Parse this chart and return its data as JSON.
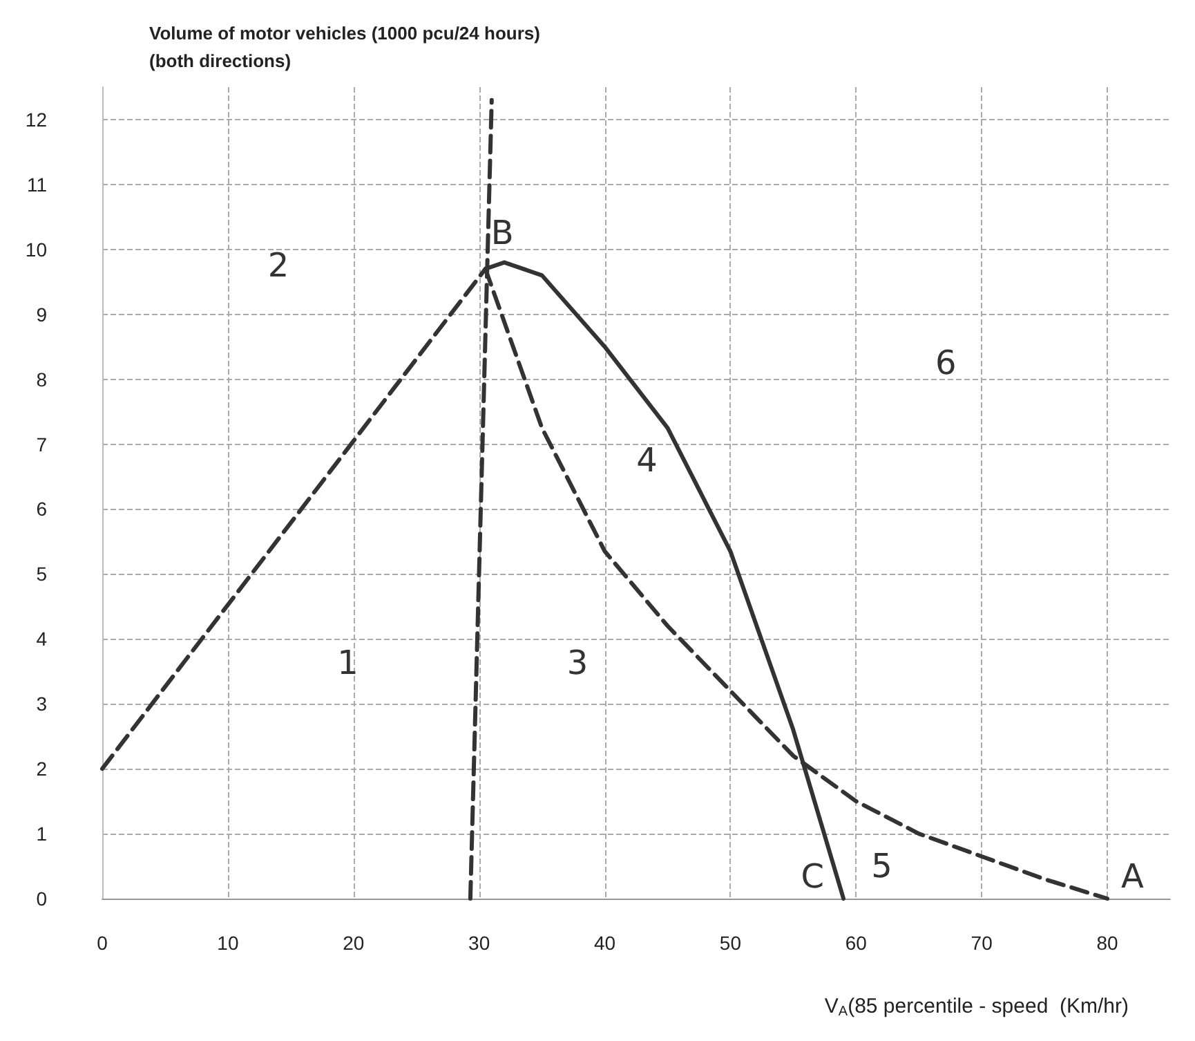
{
  "chart_data": {
    "type": "line",
    "ylabel": "Volume of motor vehicles (1000 pcu/24 hours)\n(both directions)",
    "xlabel": "V$_{A}$(85 percentile - speed  (Km/hr)",
    "xlim": [
      0,
      85
    ],
    "xticks": [
      0,
      10,
      20,
      30,
      40,
      50,
      60,
      70,
      80
    ],
    "ylim": [
      0,
      12.5
    ],
    "yticks": [
      0,
      1,
      2,
      3,
      4,
      5,
      6,
      7,
      8,
      9,
      10,
      11,
      12
    ],
    "grid": true,
    "marker": "none",
    "series": [
      {
        "color": "#333333",
        "line_style": "dashed",
        "x": [
          0,
          30.5
        ],
        "values": [
          2,
          9.7
        ]
      },
      {
        "color": "#333333",
        "line_style": "dashed",
        "x": [
          29.3,
          31
        ],
        "values": [
          0,
          12.3
        ]
      },
      {
        "color": "#333333",
        "line_style": "dashed",
        "x": [
          30.5,
          35,
          40,
          45,
          50,
          55,
          60,
          65,
          70,
          75,
          80
        ],
        "values": [
          9.7,
          7.25,
          5.35,
          4.2,
          3.2,
          2.2,
          1.5,
          1.0,
          0.65,
          0.3,
          0
        ]
      },
      {
        "color": "#333333",
        "line_style": "solid",
        "x": [
          30.5,
          32,
          35,
          40,
          45,
          50,
          55,
          57,
          59
        ],
        "values": [
          9.7,
          9.8,
          9.6,
          8.5,
          7.25,
          5.35,
          2.6,
          1.3,
          0
        ]
      }
    ],
    "annotations": [
      "1",
      "2",
      "3",
      "4",
      "5",
      "6",
      {
        "text": "A",
        "x": 80,
        "y": 0
      },
      {
        "text": "B",
        "x": 30.5,
        "y": 9.7
      },
      {
        "text": "C",
        "x": 59,
        "y": 0
      }
    ]
  }
}
